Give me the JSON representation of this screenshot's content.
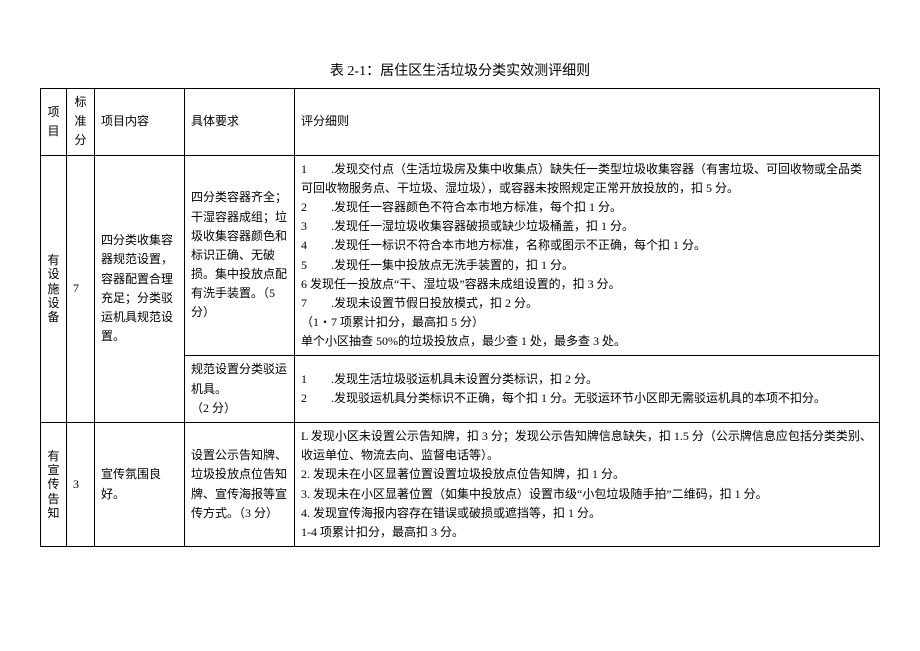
{
  "title": "表 2-1：居住区生活垃圾分类实效测评细则",
  "headers": {
    "c1": "项目",
    "c2": "标准分",
    "c3": "项目内容",
    "c4": "具体要求",
    "c5": "评分细则"
  },
  "row1": {
    "proj_l1": "有",
    "proj_l2": "设",
    "proj_l3": "施",
    "proj_l4": "设",
    "proj_l5": "备",
    "score": "7",
    "content": "四分类收集容器规范设置，容器配置合理充足；分类驳运机具规范设置。",
    "req_a": "四分类容器齐全；干湿容器成组；垃圾收集容器颜色和标识正确、无破损。集中投放点配有洗手装置。（5 分）",
    "detail_a_1": "1　　.发现交付点（生活垃圾房及集中收集点）缺失任一类型垃圾收集容器（有害垃圾、可回收物或全品类可回收物服务点、干垃圾、湿垃圾），或容器未按照规定正常开放投放的，扣 5 分。",
    "detail_a_2": "2　　.发现任一容器颜色不符合本市地方标准，每个扣 1 分。",
    "detail_a_3": "3　　.发现任一湿垃圾收集容器破损或缺少垃圾桶盖，扣 1 分。",
    "detail_a_4": "4　　.发现任一标识不符合本市地方标准，名称或图示不正确，每个扣 1 分。",
    "detail_a_5": "5　　.发现任一集中投放点无洗手装置的，扣 1 分。",
    "detail_a_6": "6 发现任一投放点“干、湿垃圾”容器未成组设置的，扣 3 分。",
    "detail_a_7": "7　　.发现未设置节假日投放模式，扣 2 分。",
    "detail_a_8": "（1・7 项累计扣分，最高扣 5 分）",
    "detail_a_9": "单个小区抽查 50%的垃圾投放点，最少查 1 处，最多查 3 处。",
    "req_b": "规范设置分类驳运机具。\n（2 分）",
    "detail_b_1": "1　　.发现生活垃圾驳运机具未设置分类标识，扣 2 分。",
    "detail_b_2": "2　　.发现驳运机具分类标识不正确，每个扣 1 分。无驳运环节小区即无需驳运机具的本项不扣分。"
  },
  "row2": {
    "proj_l1": "有",
    "proj_l2": "宣",
    "proj_l3": "传",
    "proj_l4": "告",
    "proj_l5": "知",
    "score": "3",
    "content": "宣传氛围良好。",
    "req": "设置公示告知牌、垃圾投放点位告知牌、宣传海报等宣传方式。（3 分）",
    "detail_1": "L 发现小区未设置公示告知牌，扣 3 分；发现公示告知牌信息缺失，扣 1.5 分（公示牌信息应包括分类类别、收运单位、物流去向、监督电话等）。",
    "detail_2": "2. 发现未在小区显著位置设置垃圾投放点位告知牌，扣 1 分。",
    "detail_3": "3. 发现未在小区显著位置（如集中投放点）设置市级“小包垃圾随手拍”二维码，扣 1 分。",
    "detail_4": "4. 发现宣传海报内容存在错误或破损或遮挡等，扣 1 分。",
    "detail_5": "1-4 项累计扣分，最高扣 3 分。"
  }
}
